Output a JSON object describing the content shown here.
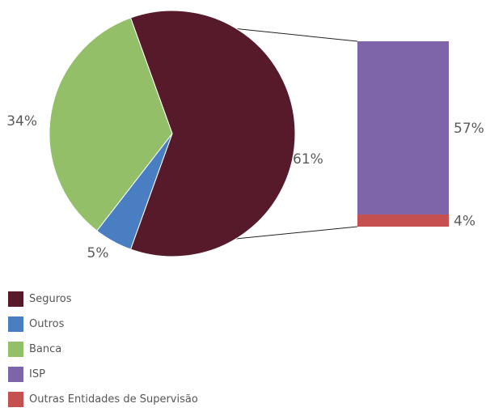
{
  "chart_data": {
    "type": "bar-of-pie",
    "pie": {
      "slices": [
        {
          "name": "Seguros",
          "value": 61,
          "label": "61%",
          "color": "#561a2b"
        },
        {
          "name": "Outros",
          "value": 5,
          "label": "5%",
          "color": "#4a7ec3"
        },
        {
          "name": "Banca",
          "value": 34,
          "label": "34%",
          "color": "#93bf69"
        }
      ]
    },
    "bar": {
      "exploded_from": "Seguros",
      "segments": [
        {
          "name": "ISP",
          "value": 57,
          "label": "57%",
          "color": "#7e65aa"
        },
        {
          "name": "Outras Entidades de Supervisão",
          "value": 4,
          "label": "4%",
          "color": "#c4504f"
        }
      ]
    },
    "legend": {
      "position": "bottom-left",
      "entries": [
        {
          "name": "Seguros",
          "color": "#561a2b"
        },
        {
          "name": "Outros",
          "color": "#4a7ec3"
        },
        {
          "name": "Banca",
          "color": "#93bf69"
        },
        {
          "name": "ISP",
          "color": "#7e65aa"
        },
        {
          "name": "Outras Entidades de Supervisão",
          "color": "#c4504f"
        }
      ]
    }
  }
}
